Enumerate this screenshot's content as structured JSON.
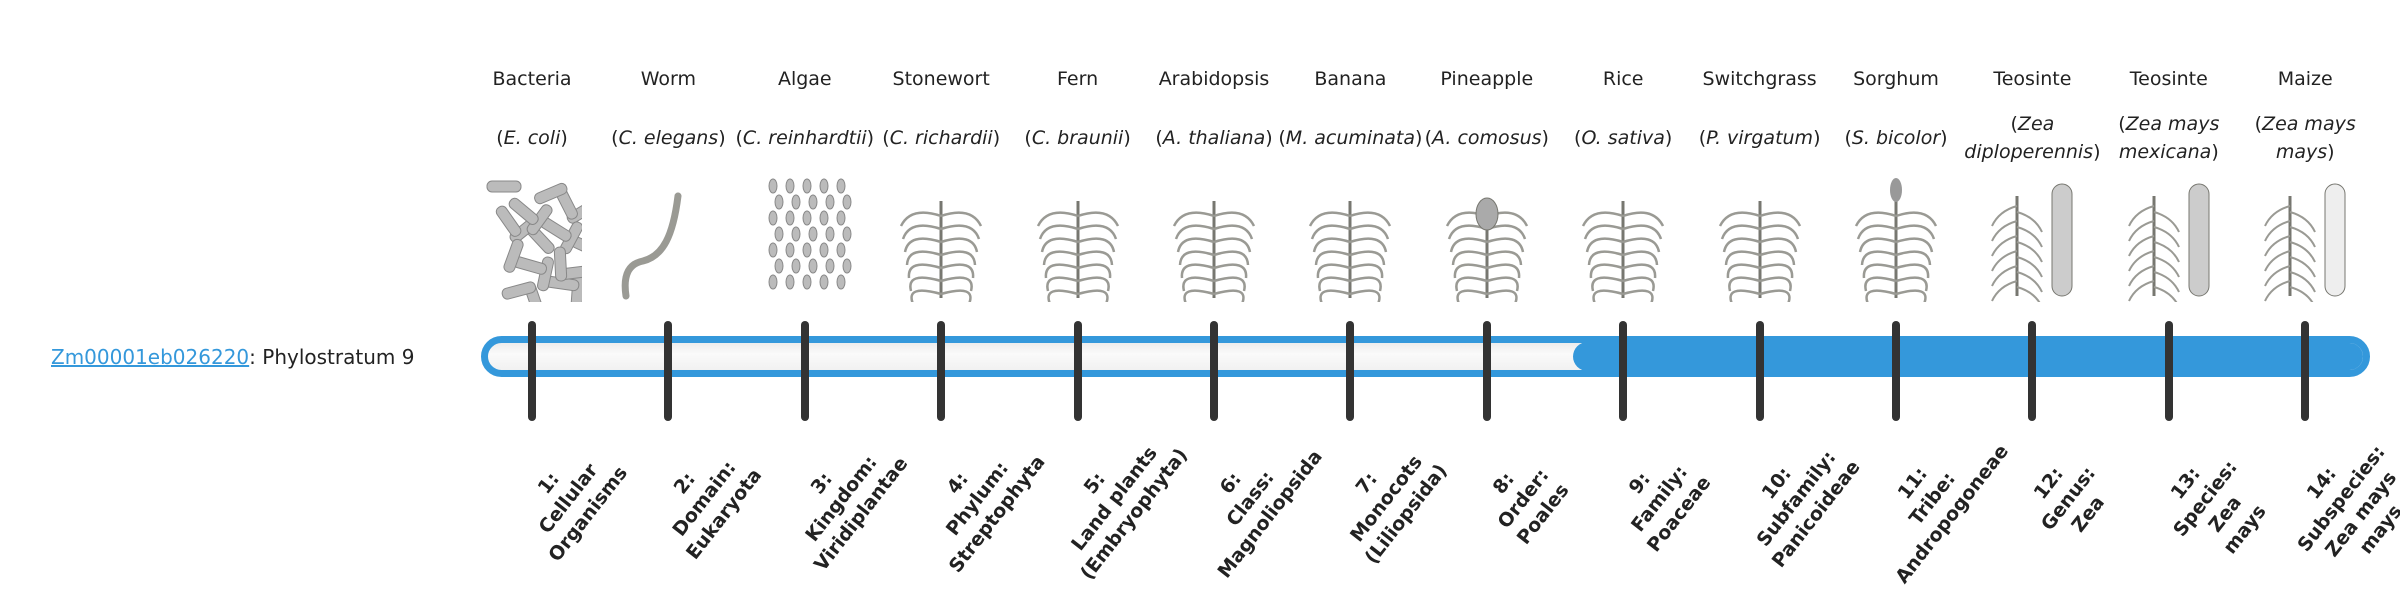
{
  "gene": {
    "id": "Zm00001eb026220",
    "suffix": ": Phylostratum 9"
  },
  "phylostratum": {
    "current": 9,
    "total": 14
  },
  "colors": {
    "accent": "#3498db",
    "tick": "#333333"
  },
  "organisms": [
    {
      "name": "Bacteria",
      "sci": "E. coli",
      "icon": "bacteria-image",
      "stratum": "1:\nCellular\nOrganisms"
    },
    {
      "name": "Worm",
      "sci": "C. elegans",
      "icon": "worm-image",
      "stratum": "2:\nDomain:\nEukaryota"
    },
    {
      "name": "Algae",
      "sci": "C. reinhardtii",
      "icon": "algae-image",
      "stratum": "3:\nKingdom:\nViridiplantae"
    },
    {
      "name": "Stonewort",
      "sci": "C. richardii",
      "icon": "stonewort-image",
      "stratum": "4:\nPhylum:\nStreptophyta"
    },
    {
      "name": "Fern",
      "sci": "C. braunii",
      "icon": "fern-image",
      "stratum": "5:\nLand plants\n(Embryophyta)"
    },
    {
      "name": "Arabidopsis",
      "sci": "A. thaliana",
      "icon": "arabidopsis-image",
      "stratum": "6:\nClass:\nMagnoliopsida"
    },
    {
      "name": "Banana",
      "sci": "M. acuminata",
      "icon": "banana-image",
      "stratum": "7:\nMonocots\n(Liliopsida)"
    },
    {
      "name": "Pineapple",
      "sci": "A. comosus",
      "icon": "pineapple-image",
      "stratum": "8:\nOrder:\nPoales"
    },
    {
      "name": "Rice",
      "sci": "O. sativa",
      "icon": "rice-image",
      "stratum": "9:\nFamily:\nPoaceae"
    },
    {
      "name": "Switchgrass",
      "sci": "P. virgatum",
      "icon": "switchgrass-image",
      "stratum": "10:\nSubfamily:\nPanicoideae"
    },
    {
      "name": "Sorghum",
      "sci": "S. bicolor",
      "icon": "sorghum-image",
      "stratum": "11:\nTribe:\nAndropogoneae"
    },
    {
      "name": "Teosinte",
      "sci": "Zea diploperennis",
      "icon": "teosinte-image",
      "stratum": "12:\nGenus:\nZea"
    },
    {
      "name": "Teosinte",
      "sci": "Zea mays mexicana",
      "icon": "teosinte-mexicana-image",
      "stratum": "13:\nSpecies:\nZea\nmays"
    },
    {
      "name": "Maize",
      "sci": "Zea mays mays",
      "icon": "maize-image",
      "stratum": "14:\nSubspecies:\nZea mays\nmays"
    }
  ]
}
